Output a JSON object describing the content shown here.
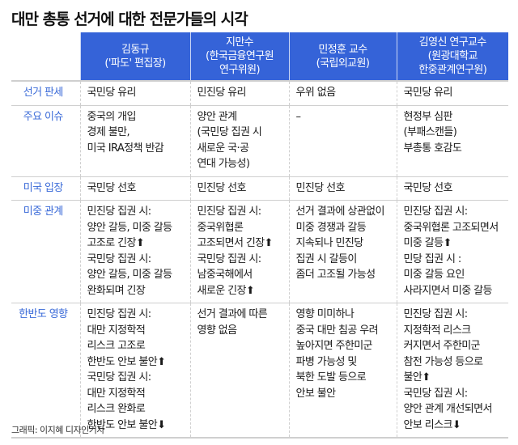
{
  "title": "대만 총통 선거에 대한 전문가들의 시각",
  "headers": [
    "김동규\n('파도' 편집장)",
    "지만수\n(한국금융연구원\n연구위원)",
    "민정훈 교수\n(국립외교원)",
    "김영신 연구교수\n(원광대학교\n한중관계연구원)"
  ],
  "rows": [
    {
      "label": "선거 판세",
      "cells": [
        "국민당 유리",
        "민진당 유리",
        "우위 없음",
        "국민당 유리"
      ]
    },
    {
      "label": "주요 이슈",
      "cells": [
        "중국의 개입\n경제 불만,\n미국 IRA정책 반감",
        "양안 관계\n(국민당 집권 시\n새로운 국·공\n연대 가능성)",
        "–",
        "현정부 심판\n(부패스캔들)\n부총통 호감도"
      ]
    },
    {
      "label": "미국 입장",
      "cells": [
        "국민당 선호",
        "민진당 선호",
        "민진당 선호",
        "국민당 선호"
      ]
    },
    {
      "label": "미중 관계",
      "cells": [
        "민진당 집권 시:\n양안 갈등, 미중 갈등\n고조로 긴장⬆\n국민당 집권 시:\n양안 갈등, 미중 갈등\n완화되며 긴장",
        "민진당 집권 시:\n중국위협론\n고조되면서 긴장⬆\n국민당 집권 시:\n남중국해에서\n새로운 긴장⬆",
        "선거 결과에 상관없이\n미중 경쟁과 갈등\n지속되나 민진당\n집권 시 갈등이\n좀더 고조될 가능성",
        "민진당 집권 시:\n중국위협론 고조되면서\n미중 갈등⬆\n민당 집권 시 :\n미중 갈등 요인\n사라지면서 미중 갈등"
      ]
    },
    {
      "label": "한반도 영향",
      "cells": [
        "민진당 집권 시:\n대만 지정학적\n리스크 고조로\n한반도 안보 불안⬆\n국민당 집권 시:\n대만 지정학적\n리스크 완화로\n한반도 안보 불안⬇",
        "선거 결과에 따른\n영향 없음",
        "영향 미미하나\n중국 대만 침공 우려\n높아지면 주한미군\n파병 가능성 및\n북한 도발 등으로\n안보 불안",
        "민진당 집권 시:\n지정학적 리스크\n커지면서 주한미군\n참전 가능성 등으로\n불안⬆\n국민당 집권 시:\n양안 관계 개선되면서\n안보 리스크⬇"
      ]
    }
  ],
  "credit": "그래픽: 이지혜 디자인기자",
  "colors": {
    "header_bg": "#3563d8",
    "label": "#3a6ad8"
  }
}
